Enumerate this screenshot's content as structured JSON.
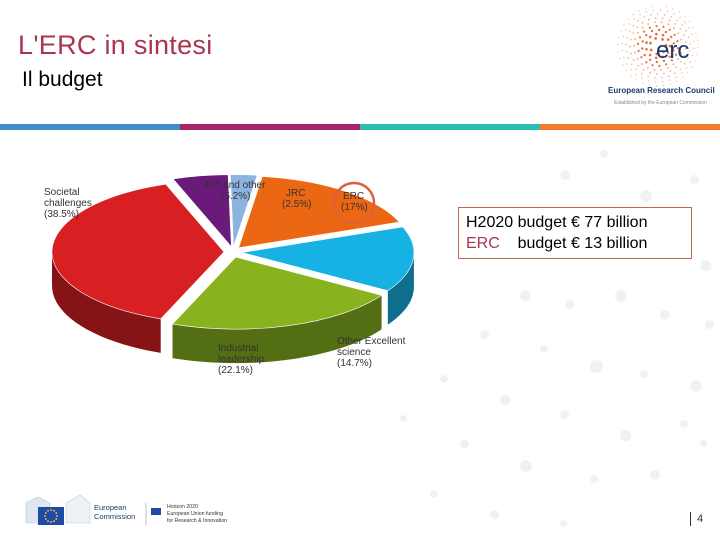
{
  "header": {
    "title": "L'ERC in sintesi",
    "subtitle": "Il budget",
    "logo_word": "erc",
    "logo_org": "European Research Council",
    "logo_tagline": "Established by the European Commission"
  },
  "colors": {
    "title": "#a8364e",
    "stripe": [
      "#3f8fca",
      "#a8256a",
      "#2bbfb4",
      "#f07c2c"
    ],
    "erc_highlight": "#e0603a"
  },
  "chart_data": {
    "type": "pie",
    "title": "",
    "slices": [
      {
        "label": "Societal challenges",
        "value": 38.5,
        "display": "(38.5%)",
        "color": "#d81f22"
      },
      {
        "label": "Industrial leadership",
        "value": 22.1,
        "display": "(22.1%)",
        "color": "#88b21e"
      },
      {
        "label": "Other Excellent science",
        "value": 14.7,
        "display": "(14.7%)",
        "color": "#16b2e3"
      },
      {
        "label": "ERC",
        "value": 17,
        "display": "(17%)",
        "color": "#ec6714"
      },
      {
        "label": "JRC",
        "value": 2.5,
        "display": "(2.5%)",
        "color": "#8cb4e0"
      },
      {
        "label": "EIT and other",
        "value": 5.2,
        "display": "(5.2%)",
        "color": "#6a1a78"
      }
    ],
    "highlighted": "ERC",
    "style": "3d-exploded"
  },
  "budget_box": {
    "line1": "H2020 budget € 77 billion",
    "line2_key": "ERC",
    "line2_rest": "    budget € 13 billion"
  },
  "footer": {
    "ec_line1": "European",
    "ec_line2": "Commission",
    "h2020_line1": "Horizon 2020",
    "h2020_line2": "European Union funding",
    "h2020_line3": "for Research & Innovation",
    "page_number": "4"
  }
}
